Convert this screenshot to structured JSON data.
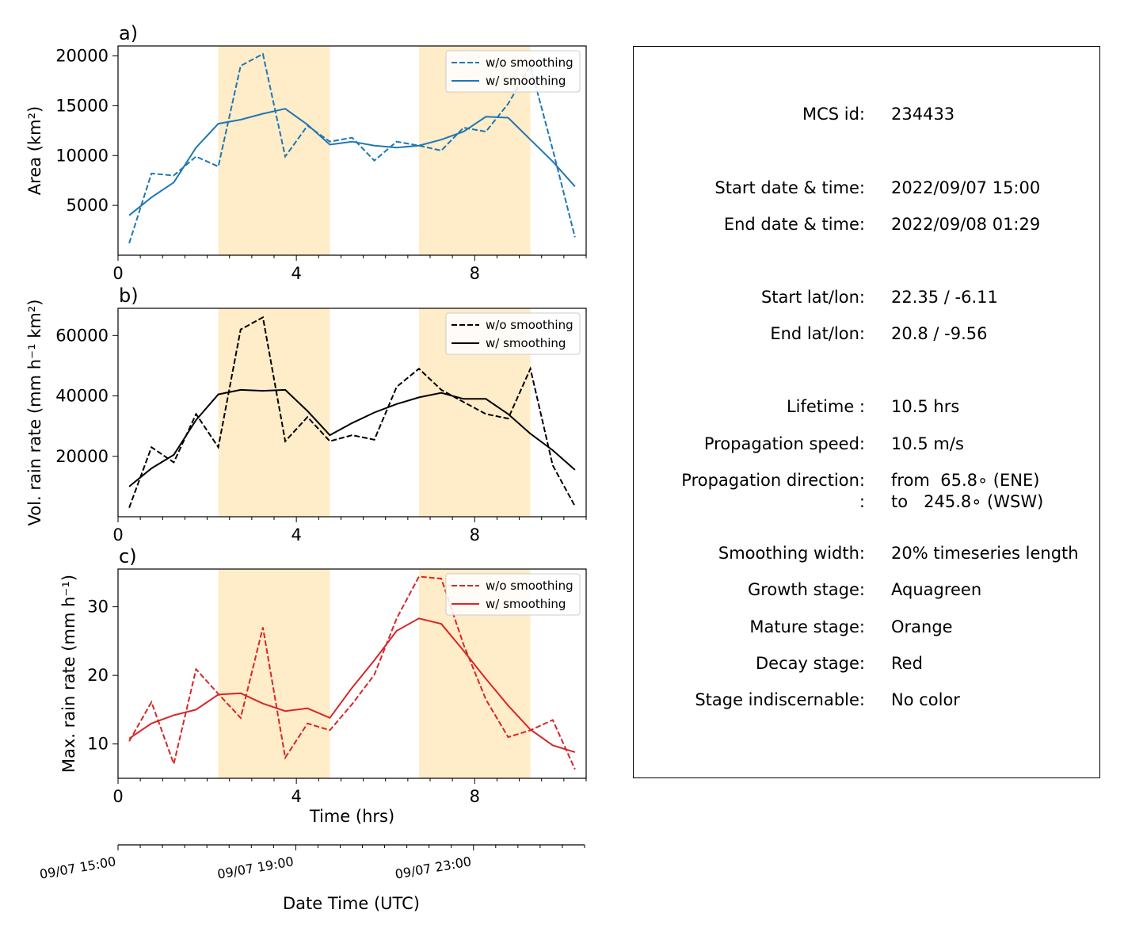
{
  "figure": {
    "xtick_labels": [
      "0",
      "4",
      "8"
    ],
    "xlabel": "Time (hrs)",
    "date_axis": {
      "tick_labels": [
        "09/07 15:00",
        "09/07 19:00",
        "09/07 23:00"
      ],
      "label": "Date Time (UTC)"
    },
    "stage_colors": {
      "mature": "#ffecc8"
    },
    "legend": {
      "without": "w/o smoothing",
      "with": "w/ smoothing"
    }
  },
  "chart_data": [
    {
      "type": "line",
      "panel_label": "a)",
      "ylabel": "Area  (km²)",
      "color": "#1f77b4",
      "xlim": [
        0,
        10.5
      ],
      "ylim": [
        0,
        21000
      ],
      "yticks": [
        5000,
        10000,
        15000,
        20000
      ],
      "shaded_x": [
        [
          2.25,
          4.75
        ],
        [
          6.75,
          9.25
        ]
      ],
      "legend_position": "top-right",
      "series": [
        {
          "name": "w/o smoothing",
          "style": "dashed",
          "x": [
            0.25,
            0.75,
            1.25,
            1.75,
            2.25,
            2.75,
            3.25,
            3.75,
            4.25,
            4.75,
            5.25,
            5.75,
            6.25,
            6.75,
            7.25,
            7.75,
            8.25,
            8.75,
            9.25,
            9.75,
            10.25
          ],
          "values": [
            1200,
            8200,
            8000,
            9900,
            8900,
            19000,
            20200,
            9900,
            13000,
            11400,
            11800,
            9500,
            11400,
            11000,
            10500,
            12800,
            12400,
            15200,
            19000,
            10600,
            1800
          ]
        },
        {
          "name": "w/ smoothing",
          "style": "solid",
          "x": [
            0.25,
            0.75,
            1.25,
            1.75,
            2.25,
            2.75,
            3.25,
            3.75,
            4.25,
            4.75,
            5.25,
            5.75,
            6.25,
            6.75,
            7.25,
            7.75,
            8.25,
            8.75,
            9.25,
            9.75,
            10.25
          ],
          "values": [
            4000,
            5800,
            7300,
            10800,
            13200,
            13600,
            14200,
            14700,
            13100,
            11100,
            11400,
            11000,
            10800,
            11000,
            11600,
            12400,
            13900,
            13800,
            11600,
            9400,
            6900
          ]
        }
      ]
    },
    {
      "type": "line",
      "panel_label": "b)",
      "ylabel": "Vol. rain rate (mm h⁻¹ km²)",
      "color": "#000000",
      "xlim": [
        0,
        10.5
      ],
      "ylim": [
        0,
        69000
      ],
      "yticks": [
        20000,
        40000,
        60000
      ],
      "shaded_x": [
        [
          2.25,
          4.75
        ],
        [
          6.75,
          9.25
        ]
      ],
      "legend_position": "top-right",
      "series": [
        {
          "name": "w/o smoothing",
          "style": "dashed",
          "x": [
            0.25,
            0.75,
            1.25,
            1.75,
            2.25,
            2.75,
            3.25,
            3.75,
            4.25,
            4.75,
            5.25,
            5.75,
            6.25,
            6.75,
            7.25,
            7.75,
            8.25,
            8.75,
            9.25,
            9.75,
            10.25
          ],
          "values": [
            3000,
            23000,
            18000,
            34000,
            23000,
            62000,
            66000,
            25000,
            33000,
            25000,
            27000,
            25500,
            43000,
            49000,
            42000,
            38000,
            34000,
            32500,
            49000,
            17000,
            3500
          ]
        },
        {
          "name": "w/ smoothing",
          "style": "solid",
          "x": [
            0.25,
            0.75,
            1.25,
            1.75,
            2.25,
            2.75,
            3.25,
            3.75,
            4.25,
            4.75,
            5.25,
            5.75,
            6.25,
            6.75,
            7.25,
            7.75,
            8.25,
            8.75,
            9.25,
            9.75,
            10.25
          ],
          "values": [
            10000,
            16000,
            20500,
            32000,
            40500,
            42000,
            41700,
            42000,
            35000,
            27000,
            31000,
            34500,
            37300,
            39500,
            41000,
            39000,
            39000,
            34000,
            27500,
            22000,
            15500
          ]
        }
      ]
    },
    {
      "type": "line",
      "panel_label": "c)",
      "ylabel": "Max. rain rate  (mm h⁻¹)",
      "color": "#d62728",
      "xlim": [
        0,
        10.5
      ],
      "ylim": [
        5,
        35.5
      ],
      "yticks": [
        10,
        20,
        30
      ],
      "shaded_x": [
        [
          2.25,
          4.75
        ],
        [
          6.75,
          9.25
        ]
      ],
      "legend_position": "top-right",
      "series": [
        {
          "name": "w/o smoothing",
          "style": "dashed",
          "x": [
            0.25,
            0.75,
            1.25,
            1.75,
            2.25,
            2.75,
            3.25,
            3.75,
            4.25,
            4.75,
            5.25,
            5.75,
            6.25,
            6.75,
            7.25,
            7.75,
            8.25,
            8.75,
            9.25,
            9.75,
            10.25
          ],
          "values": [
            10.4,
            16.1,
            7.1,
            20.9,
            17.3,
            13.8,
            27.0,
            8.0,
            13.0,
            12.0,
            15.8,
            20.1,
            28.3,
            34.4,
            34.1,
            24.5,
            16.5,
            11.0,
            12.0,
            13.5,
            6.3
          ]
        },
        {
          "name": "w/ smoothing",
          "style": "solid",
          "x": [
            0.25,
            0.75,
            1.25,
            1.75,
            2.25,
            2.75,
            3.25,
            3.75,
            4.25,
            4.75,
            5.25,
            5.75,
            6.25,
            6.75,
            7.25,
            7.75,
            8.25,
            8.75,
            9.25,
            9.75,
            10.25
          ],
          "values": [
            10.8,
            13.0,
            14.2,
            15.0,
            17.2,
            17.4,
            15.9,
            14.8,
            15.2,
            13.8,
            18.2,
            22.2,
            26.5,
            28.3,
            27.5,
            23.6,
            19.5,
            15.6,
            12.1,
            9.8,
            8.8
          ]
        }
      ]
    }
  ],
  "info": [
    {
      "label": "MCS id:",
      "value": "234433"
    },
    {
      "label": "Start date & time:",
      "value": "2022/09/07 15:00"
    },
    {
      "label": "End date & time:",
      "value": "2022/09/08 01:29"
    },
    {
      "label": "Start lat/lon:",
      "value": "22.35 / -6.11"
    },
    {
      "label": "End lat/lon:",
      "value": "20.8 / -9.56"
    },
    {
      "label": "Lifetime :",
      "value": "10.5 hrs"
    },
    {
      "label": "Propagation speed:",
      "value": "10.5 m/s"
    },
    {
      "label": "Propagation direction:",
      "value": "from  65.8∘ (ENE)"
    },
    {
      "label": ":",
      "value": "to   245.8∘ (WSW)"
    },
    {
      "label": "Smoothing width:",
      "value": "20% timeseries length"
    },
    {
      "label": "Growth stage:",
      "value": "Aquagreen"
    },
    {
      "label": "Mature stage:",
      "value": "Orange"
    },
    {
      "label": "Decay stage:",
      "value": "Red"
    },
    {
      "label": "Stage indiscernable:",
      "value": "No color"
    }
  ]
}
